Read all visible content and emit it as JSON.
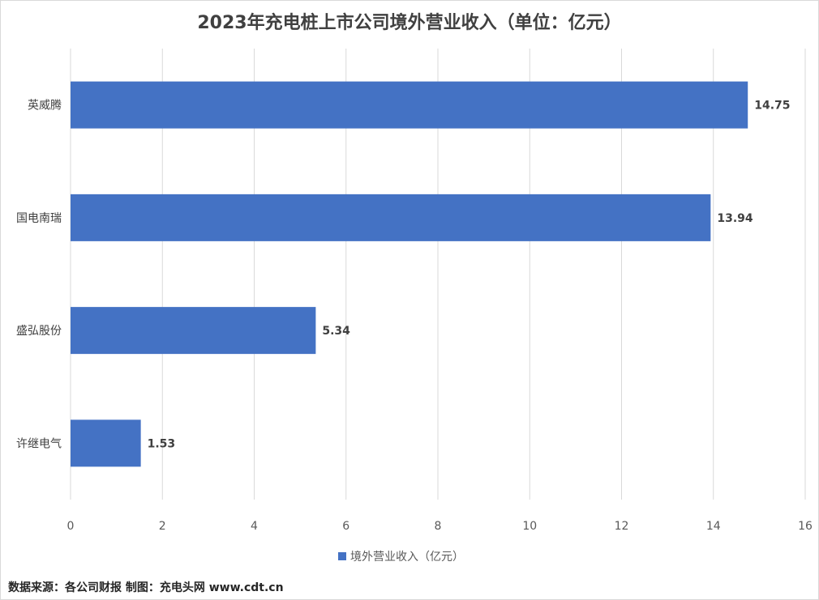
{
  "chart_data": {
    "type": "bar",
    "orientation": "horizontal",
    "title": "2023年充电桩上市公司境外营业收入（单位：亿元）",
    "categories": [
      "英威腾",
      "国电南瑞",
      "盛弘股份",
      "许继电气"
    ],
    "series": [
      {
        "name": "境外营业收入（亿元）",
        "values": [
          14.75,
          13.94,
          5.34,
          1.53
        ],
        "color": "#4472c4"
      }
    ],
    "data_labels": [
      "14.75",
      "13.94",
      "5.34",
      "1.53"
    ],
    "xlim": [
      0,
      16
    ],
    "x_ticks": [
      0,
      2,
      4,
      6,
      8,
      10,
      12,
      14,
      16
    ],
    "grid": true,
    "legend_position": "bottom"
  },
  "footer": {
    "source": "数据来源：各公司财报  制图：充电头网 www.cdt.cn"
  }
}
